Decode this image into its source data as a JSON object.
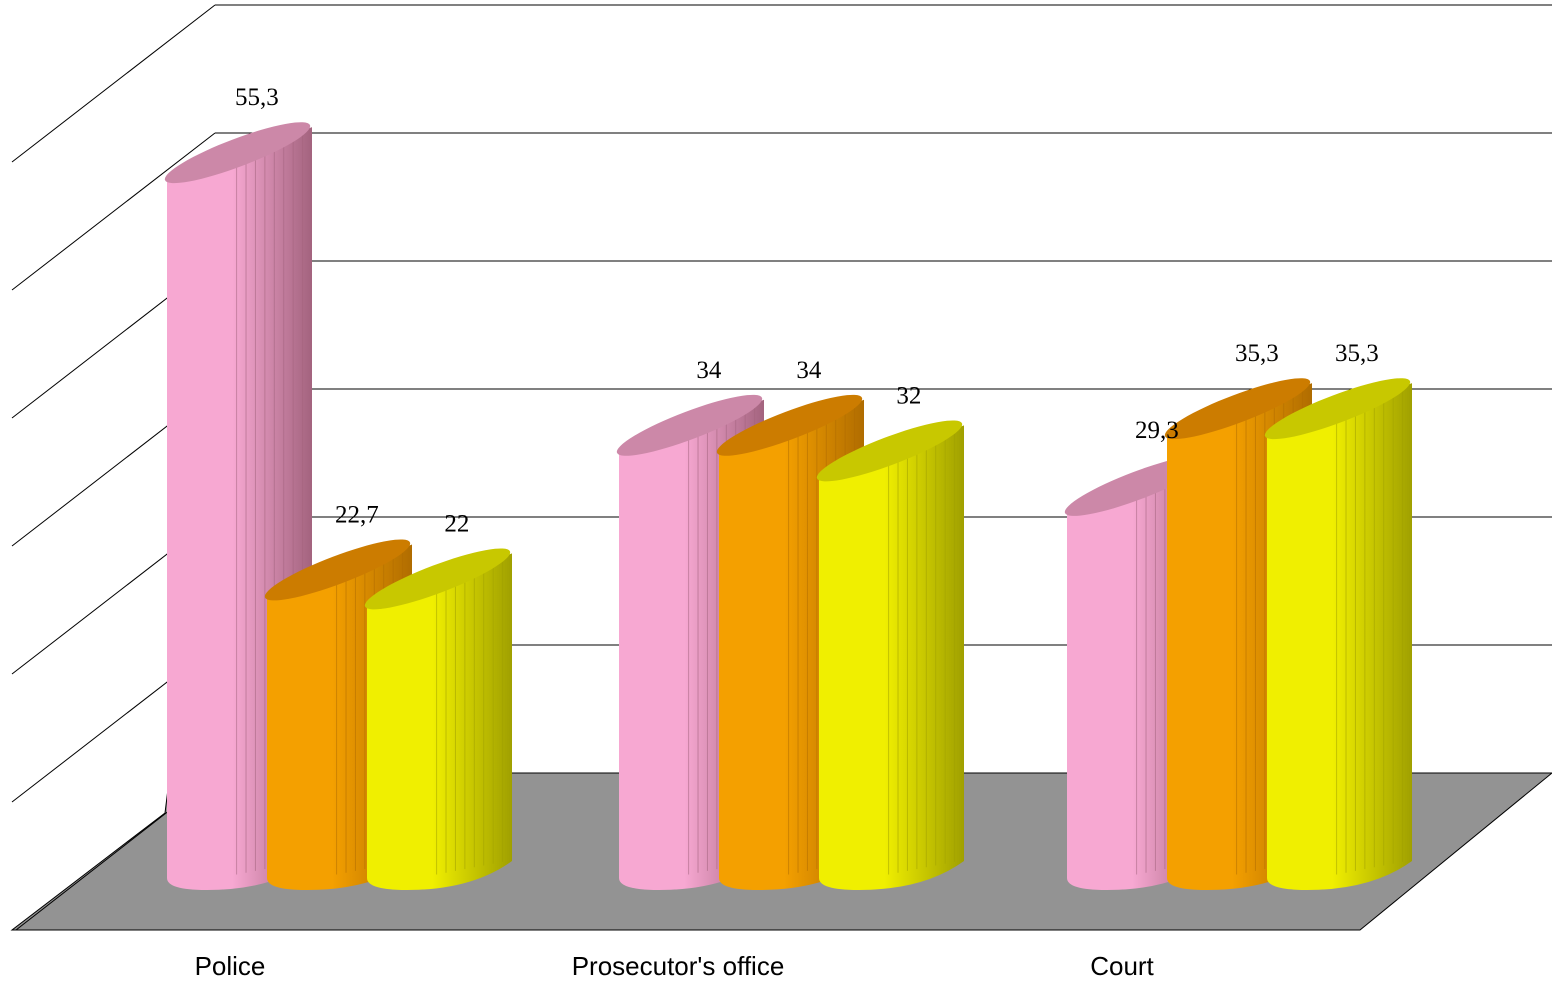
{
  "chart_data": {
    "type": "bar",
    "categories": [
      "Police",
      "Prosecutor's office",
      "Court"
    ],
    "series": [
      {
        "values": [
          55.3,
          34,
          29.3
        ],
        "labels": [
          "55,3",
          "34",
          "29,3"
        ]
      },
      {
        "values": [
          22.7,
          34,
          35.3
        ],
        "labels": [
          "22,7",
          "34",
          "35,3"
        ]
      },
      {
        "values": [
          22,
          32,
          35.3
        ],
        "labels": [
          "22",
          "32",
          "35,3"
        ]
      }
    ],
    "ylim": [
      0,
      60
    ],
    "grid": true,
    "legend": "none",
    "style": "3d-cylinder",
    "colors": {
      "series": [
        {
          "front": "#f7a8d2",
          "side": "#a3637e",
          "top": "#cc88a8"
        },
        {
          "front": "#f4a000",
          "side": "#b06c00",
          "top": "#cc7c00"
        },
        {
          "front": "#f0ef00",
          "side": "#a0a000",
          "top": "#c8c800"
        }
      ],
      "floor": "#939393",
      "grid": "#000000"
    }
  }
}
